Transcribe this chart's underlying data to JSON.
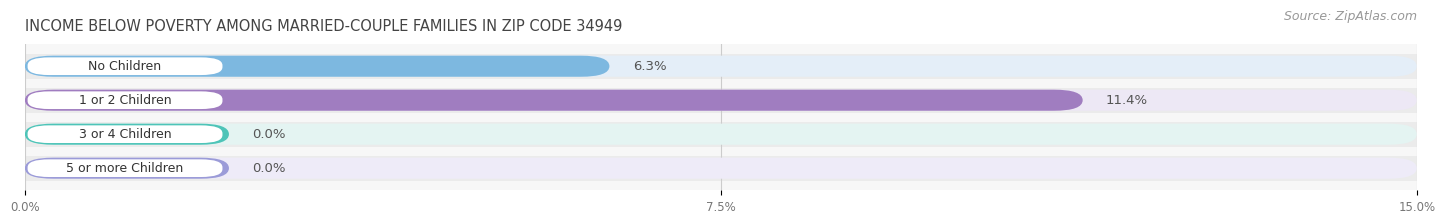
{
  "title": "INCOME BELOW POVERTY AMONG MARRIED-COUPLE FAMILIES IN ZIP CODE 34949",
  "source": "Source: ZipAtlas.com",
  "categories": [
    "No Children",
    "1 or 2 Children",
    "3 or 4 Children",
    "5 or more Children"
  ],
  "values": [
    6.3,
    11.4,
    0.0,
    0.0
  ],
  "bar_colors": [
    "#7db8e0",
    "#a07dc0",
    "#4ec4b8",
    "#9b9bd8"
  ],
  "bar_bg_colors": [
    "#e4eef8",
    "#ede8f5",
    "#e4f4f2",
    "#eeebf8"
  ],
  "row_bg_color": "#f0f0f0",
  "xlim": [
    0,
    15.0
  ],
  "xticks": [
    0.0,
    7.5,
    15.0
  ],
  "xtick_labels": [
    "0.0%",
    "7.5%",
    "15.0%"
  ],
  "title_fontsize": 10.5,
  "label_fontsize": 9,
  "source_fontsize": 9,
  "value_label_fontsize": 9.5,
  "background_color": "#ffffff",
  "plot_bg_color": "#f7f7f7"
}
